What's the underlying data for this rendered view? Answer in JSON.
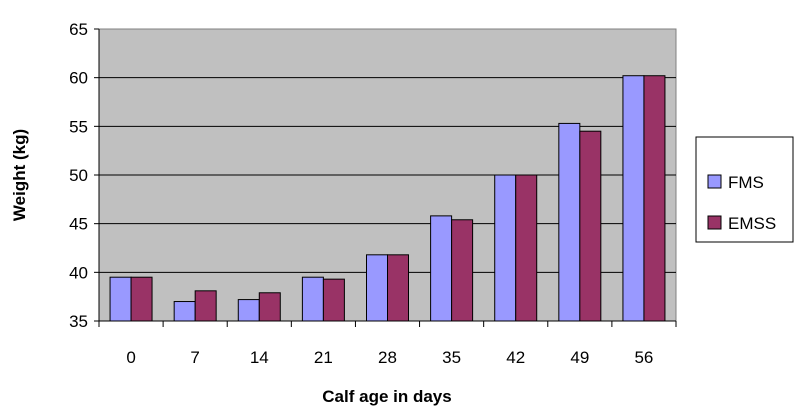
{
  "chart_data": {
    "type": "bar",
    "categories": [
      "0",
      "7",
      "14",
      "21",
      "28",
      "35",
      "42",
      "49",
      "56"
    ],
    "series": [
      {
        "name": "FMS",
        "values": [
          39.5,
          37.0,
          37.2,
          39.5,
          41.8,
          45.8,
          50.0,
          55.3,
          60.2
        ],
        "color": "#9999ff"
      },
      {
        "name": "EMSS",
        "values": [
          39.5,
          38.1,
          37.9,
          39.3,
          41.8,
          45.4,
          50.0,
          54.5,
          60.2
        ],
        "color": "#993366"
      }
    ],
    "title": "",
    "xlabel": "Calf age in days",
    "ylabel": "Weight (kg)",
    "ylim": [
      35,
      65
    ],
    "yticks": [
      "35",
      "40",
      "45",
      "50",
      "55",
      "60",
      "65"
    ],
    "grid": true,
    "legend_position": "right",
    "plot_background": "#c0c0c0"
  }
}
